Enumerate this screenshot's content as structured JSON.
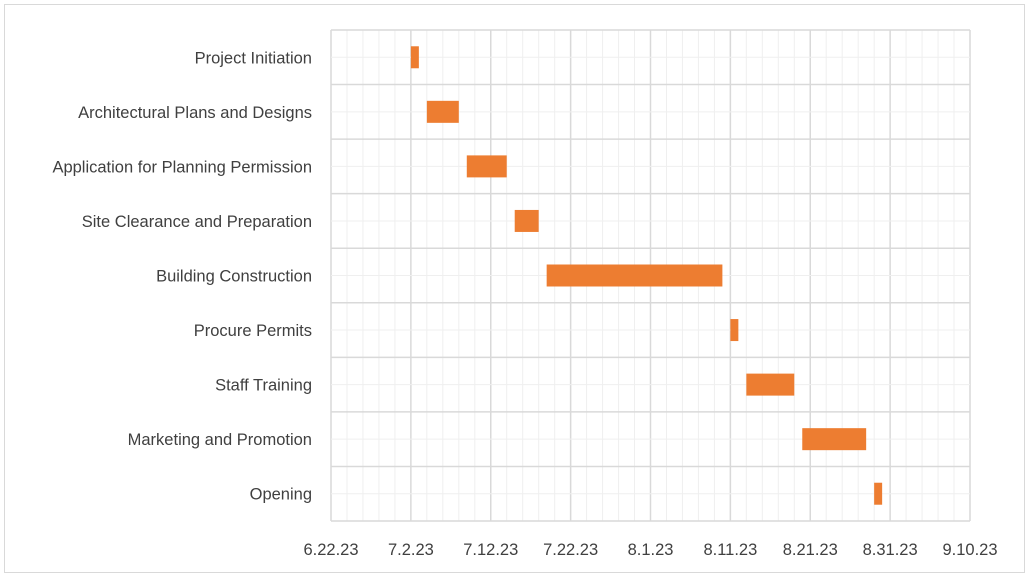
{
  "chart_data": {
    "type": "bar",
    "subtype": "gantt",
    "title": "",
    "xlabel": "",
    "ylabel": "",
    "x_ticks": [
      "6.22.23",
      "7.2.23",
      "7.12.23",
      "7.22.23",
      "8.1.23",
      "8.11.23",
      "8.21.23",
      "8.31.23",
      "9.10.23"
    ],
    "xlim": [
      "2023-06-22",
      "2023-09-10"
    ],
    "grid": true,
    "bar_color": "#ED7D31",
    "tasks": [
      {
        "name": "Project Initiation",
        "start": "2023-07-02",
        "duration_days": 1
      },
      {
        "name": "Architectural Plans and Designs",
        "start": "2023-07-04",
        "duration_days": 4
      },
      {
        "name": "Application for Planning Permission",
        "start": "2023-07-09",
        "duration_days": 5
      },
      {
        "name": "Site Clearance and Preparation",
        "start": "2023-07-15",
        "duration_days": 3
      },
      {
        "name": "Building Construction",
        "start": "2023-07-19",
        "duration_days": 22
      },
      {
        "name": "Procure Permits",
        "start": "2023-08-11",
        "duration_days": 1
      },
      {
        "name": "Staff Training",
        "start": "2023-08-13",
        "duration_days": 6
      },
      {
        "name": "Marketing and Promotion",
        "start": "2023-08-20",
        "duration_days": 8
      },
      {
        "name": "Opening",
        "start": "2023-08-29",
        "duration_days": 1
      }
    ]
  }
}
